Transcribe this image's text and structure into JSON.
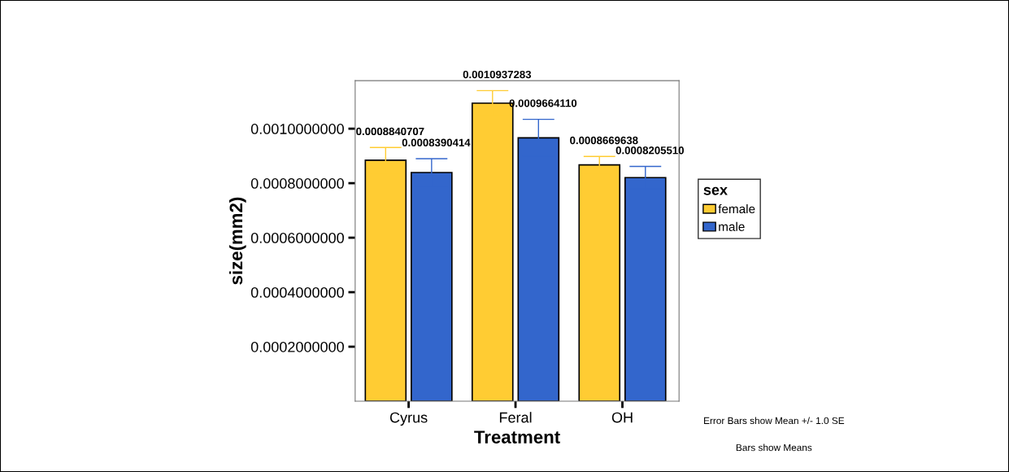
{
  "chart_data": {
    "type": "bar",
    "xlabel": "Treatment",
    "ylabel": "size(mm2)",
    "legend_title": "sex",
    "legend": "right",
    "categories": [
      "Cyrus",
      "Feral",
      "OH"
    ],
    "series": [
      {
        "name": "female",
        "color": "#ffcc33",
        "values": [
          0.0008840707,
          0.0010937283,
          0.0008669638
        ],
        "errors": [
          4.7e-05,
          4.6e-05,
          3.1e-05
        ],
        "value_labels": [
          "0.0008840707",
          "0.0010937283",
          "0.0008669638"
        ]
      },
      {
        "name": "male",
        "color": "#3366cc",
        "values": [
          0.0008390414,
          0.000966411,
          0.000820551
        ],
        "errors": [
          5.1e-05,
          6.8e-05,
          4.1e-05
        ],
        "value_labels": [
          "0.0008390414",
          "0.0009664110",
          "0.0008205510"
        ]
      }
    ],
    "ylim": [
      0,
      0.001176
    ],
    "yticks": [
      {
        "value": 0.0002,
        "label": "0.0002000000"
      },
      {
        "value": 0.0004,
        "label": "0.0004000000"
      },
      {
        "value": 0.0006,
        "label": "0.0006000000"
      },
      {
        "value": 0.0008,
        "label": "0.0008000000"
      },
      {
        "value": 0.001,
        "label": "0.0010000000"
      }
    ],
    "grid": false,
    "annotations": [
      "Error Bars show Mean +/- 1.0 SE",
      "Bars show Means"
    ]
  }
}
